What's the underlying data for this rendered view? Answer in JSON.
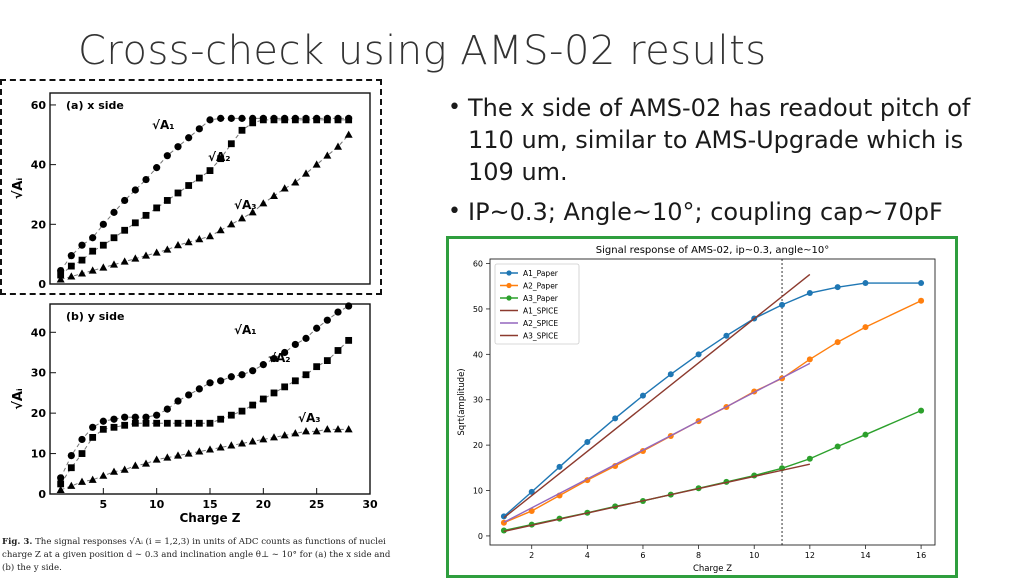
{
  "slide": {
    "title": "Cross-check using AMS-02 results",
    "bullets": [
      "The x side of AMS-02 has readout pitch of 110 um, similar to AMS-Upgrade which is 109 um.",
      "IP~0.3; Angle~10°; coupling cap~70pF"
    ]
  },
  "figure": {
    "caption_bold": "Fig. 3.",
    "caption": "The signal responses √Aᵢ (i = 1,2,3) in units of ADC counts as functions of nuclei charge Z at a given position d ∼ 0.3 and inclination angle θ⊥ ∼ 10° for (a) the x side and (b) the y side."
  },
  "colors": {
    "highlight_border": "#2e9e3e",
    "dash_border": "#111111"
  },
  "chart_data": [
    {
      "type": "scatter",
      "panel_label": "(a) x side",
      "ylabel": "√Aᵢ",
      "xlim": [
        0,
        30
      ],
      "ylim": [
        0,
        64
      ],
      "xticks": [
        5,
        10,
        15,
        20,
        25,
        30
      ],
      "yticks": [
        0,
        20,
        40,
        60
      ],
      "series": [
        {
          "name": "√A₁",
          "marker": "circle",
          "x": [
            1,
            2,
            3,
            4,
            5,
            6,
            7,
            8,
            9,
            10,
            11,
            12,
            13,
            14,
            15,
            16,
            17,
            18,
            19,
            20,
            21,
            22,
            23,
            24,
            25,
            26,
            27,
            28
          ],
          "y": [
            4.5,
            9.5,
            13,
            15.5,
            20,
            24,
            28,
            31.5,
            35,
            39,
            43,
            46,
            49,
            52,
            55,
            55.5,
            55.5,
            55.5,
            55.5,
            55.5,
            55.5,
            55.5,
            55.5,
            55.5,
            55.5,
            55.5,
            55.5,
            55.5
          ]
        },
        {
          "name": "√A₂",
          "marker": "square",
          "x": [
            1,
            2,
            3,
            4,
            5,
            6,
            7,
            8,
            9,
            10,
            11,
            12,
            13,
            14,
            15,
            16,
            17,
            18,
            19,
            20,
            21,
            22,
            23,
            24,
            25,
            26,
            27,
            28
          ],
          "y": [
            3,
            6,
            8,
            11,
            13,
            15.5,
            18,
            20.5,
            23,
            25.5,
            28,
            30.5,
            33,
            35.5,
            38,
            42,
            47,
            51.5,
            54,
            55,
            55,
            55,
            55,
            55,
            55,
            55,
            55,
            55
          ]
        },
        {
          "name": "√A₃",
          "marker": "triangle",
          "x": [
            1,
            2,
            3,
            4,
            5,
            6,
            7,
            8,
            9,
            10,
            11,
            12,
            13,
            14,
            15,
            16,
            17,
            18,
            19,
            20,
            21,
            22,
            23,
            24,
            25,
            26,
            27,
            28
          ],
          "y": [
            1.5,
            2.5,
            3.5,
            4.5,
            5.5,
            6.5,
            7.5,
            8.5,
            9.5,
            10.5,
            11.5,
            13,
            14,
            15,
            16,
            18,
            20,
            22,
            24,
            27,
            29.5,
            32,
            34,
            37,
            40,
            43,
            46,
            50
          ]
        }
      ],
      "annotations": [
        "√A₁",
        "√A₂",
        "√A₃"
      ]
    },
    {
      "type": "scatter",
      "panel_label": "(b) y side",
      "xlabel": "Charge Z",
      "ylabel": "√Aᵢ",
      "xlim": [
        0,
        30
      ],
      "ylim": [
        0,
        47
      ],
      "xticks": [
        5,
        10,
        15,
        20,
        25,
        30
      ],
      "yticks": [
        0,
        10,
        20,
        30,
        40
      ],
      "series": [
        {
          "name": "√A₁",
          "marker": "circle",
          "x": [
            1,
            2,
            3,
            4,
            5,
            6,
            7,
            8,
            9,
            10,
            11,
            12,
            13,
            14,
            15,
            16,
            17,
            18,
            19,
            20,
            21,
            22,
            23,
            24,
            25,
            26,
            27,
            28
          ],
          "y": [
            4,
            9.5,
            13.5,
            16.5,
            18,
            18.5,
            19,
            19,
            19,
            19.5,
            21,
            23,
            24.5,
            26,
            27.5,
            28,
            29,
            29.5,
            30.5,
            32,
            33.5,
            35,
            37,
            38.5,
            41,
            43,
            45,
            46.5
          ]
        },
        {
          "name": "√A₂",
          "marker": "square",
          "x": [
            1,
            2,
            3,
            4,
            5,
            6,
            7,
            8,
            9,
            10,
            11,
            12,
            13,
            14,
            15,
            16,
            17,
            18,
            19,
            20,
            21,
            22,
            23,
            24,
            25,
            26,
            27,
            28
          ],
          "y": [
            2.5,
            6.5,
            10,
            14,
            16,
            16.5,
            17,
            17.5,
            17.5,
            17.5,
            17.5,
            17.5,
            17.5,
            17.5,
            17.5,
            18.5,
            19.5,
            20.5,
            22,
            23.5,
            25,
            26.5,
            28,
            29.5,
            31.5,
            33,
            35.5,
            38
          ]
        },
        {
          "name": "√A₃",
          "marker": "triangle",
          "x": [
            1,
            2,
            3,
            4,
            5,
            6,
            7,
            8,
            9,
            10,
            11,
            12,
            13,
            14,
            15,
            16,
            17,
            18,
            19,
            20,
            21,
            22,
            23,
            24,
            25,
            26,
            27,
            28
          ],
          "y": [
            1,
            2,
            3,
            3.5,
            4.5,
            5.5,
            6,
            7,
            7.5,
            8.5,
            9,
            9.5,
            10,
            10.5,
            11,
            11.5,
            12,
            12.5,
            13,
            13.5,
            14,
            14.5,
            15,
            15.5,
            15.5,
            16,
            16,
            16
          ]
        }
      ],
      "annotations": [
        "√A₁",
        "√A₂",
        "√A₃"
      ]
    },
    {
      "type": "line",
      "title": "Signal response of AMS-02, ip~0.3, angle~10°",
      "xlabel": "Charge Z",
      "ylabel": "Sqrt(amplitude)",
      "xlim": [
        0.5,
        16.5
      ],
      "ylim": [
        -2,
        61
      ],
      "xticks": [
        2,
        4,
        6,
        8,
        10,
        12,
        14,
        16
      ],
      "yticks": [
        0,
        10,
        20,
        30,
        40,
        50,
        60
      ],
      "vline_x": 11,
      "legend_position": "top-left",
      "series": [
        {
          "name": "A1_Paper",
          "color": "#1f77b4",
          "marker": "circle",
          "x": [
            1,
            2,
            3,
            4,
            5,
            6,
            7,
            8,
            9,
            10,
            11,
            12,
            13,
            14,
            16
          ],
          "y": [
            4.3,
            9.7,
            15.2,
            20.7,
            25.9,
            30.9,
            35.6,
            40.0,
            44.1,
            47.9,
            50.9,
            53.5,
            54.8,
            55.7,
            55.7
          ]
        },
        {
          "name": "A2_Paper",
          "color": "#ff7f0e",
          "marker": "circle",
          "x": [
            1,
            2,
            3,
            4,
            5,
            6,
            7,
            8,
            9,
            10,
            11,
            12,
            13,
            14,
            16
          ],
          "y": [
            2.9,
            5.5,
            8.9,
            12.3,
            15.4,
            18.7,
            22.0,
            25.3,
            28.4,
            31.8,
            34.7,
            38.9,
            42.7,
            46.0,
            51.8
          ]
        },
        {
          "name": "A3_Paper",
          "color": "#2ca02c",
          "marker": "circle",
          "x": [
            1,
            2,
            3,
            4,
            5,
            6,
            7,
            8,
            9,
            10,
            11,
            12,
            13,
            14,
            16
          ],
          "y": [
            1.2,
            2.5,
            3.8,
            5.1,
            6.5,
            7.7,
            9.1,
            10.5,
            11.9,
            13.3,
            14.9,
            17.0,
            19.7,
            22.3,
            27.6
          ]
        },
        {
          "name": "A1_SPICE",
          "color": "#8c3a2e",
          "x": [
            1,
            12
          ],
          "y": [
            4.0,
            57.6
          ]
        },
        {
          "name": "A2_SPICE",
          "color": "#9467bd",
          "x": [
            1,
            12
          ],
          "y": [
            3.0,
            38.0
          ]
        },
        {
          "name": "A3_SPICE",
          "color": "#8c3a2e",
          "x": [
            1,
            12
          ],
          "y": [
            1.0,
            15.8
          ]
        }
      ]
    }
  ]
}
